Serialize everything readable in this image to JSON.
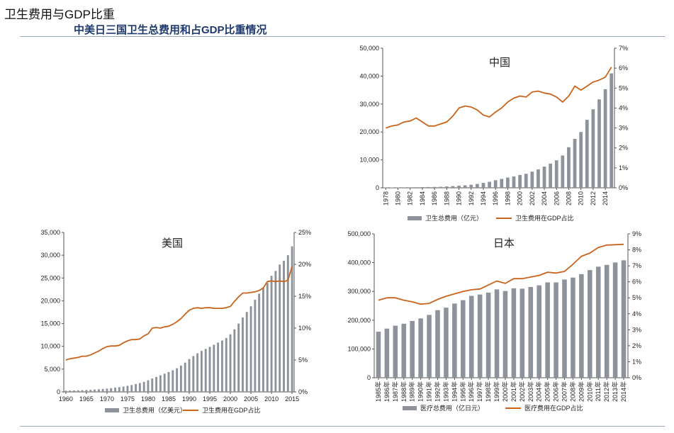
{
  "header": {
    "title": "卫生费用与GDP比重",
    "subtitle": "中美日三国卫生总费用和占GDP比重情况"
  },
  "colors": {
    "bar": "#8e939b",
    "line": "#c8641c",
    "axis": "#555555"
  },
  "chart_data": [
    {
      "id": "china",
      "type": "bar+line",
      "title": "中国",
      "categories": [
        "1978",
        "1979",
        "1980",
        "1981",
        "1982",
        "1983",
        "1984",
        "1985",
        "1986",
        "1987",
        "1988",
        "1989",
        "1990",
        "1991",
        "1992",
        "1993",
        "1994",
        "1995",
        "1996",
        "1997",
        "1998",
        "1999",
        "2000",
        "2001",
        "2002",
        "2003",
        "2004",
        "2005",
        "2006",
        "2007",
        "2008",
        "2009",
        "2010",
        "2011",
        "2012",
        "2013",
        "2014",
        "2015"
      ],
      "tick_labels": [
        "1978",
        "1980",
        "1982",
        "1984",
        "1986",
        "1988",
        "1990",
        "1992",
        "1994",
        "1996",
        "1998",
        "2000",
        "2002",
        "2004",
        "2006",
        "2008",
        "2010",
        "2012",
        "2014"
      ],
      "y_ticks": [
        "0",
        "10,000",
        "20,000",
        "30,000",
        "40,000",
        "50,000"
      ],
      "y2_ticks": [
        "0%",
        "1%",
        "2%",
        "3%",
        "4%",
        "5%",
        "6%",
        "7%"
      ],
      "ylim": [
        0,
        50000
      ],
      "y2lim": [
        0,
        7
      ],
      "series": [
        {
          "name": "卫生总费用（亿元）",
          "type": "bar",
          "values": [
            110,
            126,
            143,
            160,
            177,
            207,
            242,
            279,
            316,
            378,
            488,
            615,
            747,
            893,
            1096,
            1377,
            1761,
            2155,
            2709,
            3197,
            3679,
            4048,
            4587,
            5025,
            5790,
            6584,
            7590,
            8660,
            9843,
            11574,
            14535,
            17541,
            19980,
            24345,
            28119,
            31669,
            35312,
            40975
          ]
        },
        {
          "name": "卫生费用在GDP占比",
          "type": "line",
          "values": [
            3.0,
            3.1,
            3.15,
            3.3,
            3.35,
            3.5,
            3.3,
            3.1,
            3.1,
            3.2,
            3.3,
            3.6,
            4.0,
            4.1,
            4.05,
            3.9,
            3.65,
            3.55,
            3.8,
            4.0,
            4.3,
            4.5,
            4.6,
            4.55,
            4.8,
            4.85,
            4.75,
            4.7,
            4.55,
            4.3,
            4.6,
            5.1,
            4.9,
            5.1,
            5.3,
            5.4,
            5.55,
            6.05
          ]
        }
      ]
    },
    {
      "id": "usa",
      "type": "bar+line",
      "title": "美国",
      "categories": [
        "1960",
        "1961",
        "1962",
        "1963",
        "1964",
        "1965",
        "1966",
        "1967",
        "1968",
        "1969",
        "1970",
        "1971",
        "1972",
        "1973",
        "1974",
        "1975",
        "1976",
        "1977",
        "1978",
        "1979",
        "1980",
        "1981",
        "1982",
        "1983",
        "1984",
        "1985",
        "1986",
        "1987",
        "1988",
        "1989",
        "1990",
        "1991",
        "1992",
        "1993",
        "1994",
        "1995",
        "1996",
        "1997",
        "1998",
        "1999",
        "2000",
        "2001",
        "2002",
        "2003",
        "2004",
        "2005",
        "2006",
        "2007",
        "2008",
        "2009",
        "2010",
        "2011",
        "2012",
        "2013",
        "2014",
        "2015"
      ],
      "tick_labels": [
        "1960",
        "1965",
        "1970",
        "1975",
        "1980",
        "1985",
        "1990",
        "1995",
        "2000",
        "2005",
        "2010",
        "2015"
      ],
      "y_ticks": [
        "0",
        "5,000",
        "10,000",
        "15,000",
        "20,000",
        "25,000",
        "30,000",
        "35,000"
      ],
      "y2_ticks": [
        "0%",
        "5%",
        "10%",
        "15%",
        "20%",
        "25%"
      ],
      "ylim": [
        0,
        35000
      ],
      "y2lim": [
        0,
        25
      ],
      "series": [
        {
          "name": "卫生总费用（亿美元）",
          "type": "bar",
          "values": [
            270,
            300,
            320,
            350,
            380,
            420,
            460,
            520,
            580,
            650,
            740,
            830,
            930,
            1030,
            1160,
            1330,
            1510,
            1730,
            1950,
            2210,
            2550,
            2940,
            3290,
            3640,
            4000,
            4370,
            4750,
            5190,
            5780,
            6420,
            7210,
            7880,
            8480,
            9000,
            9450,
            9900,
            10350,
            10820,
            11270,
            11830,
            12640,
            13750,
            15000,
            16350,
            17550,
            18790,
            20230,
            21570,
            22830,
            23930,
            25490,
            26550,
            27960,
            28790,
            30010,
            31960
          ]
        },
        {
          "name": "卫生费用在GDP占比",
          "type": "line",
          "values": [
            5.0,
            5.2,
            5.3,
            5.4,
            5.6,
            5.6,
            5.8,
            6.1,
            6.4,
            6.8,
            7.1,
            7.2,
            7.2,
            7.3,
            7.7,
            8.0,
            8.2,
            8.2,
            8.3,
            8.8,
            9.1,
            10.0,
            10.1,
            10.0,
            10.2,
            10.3,
            10.6,
            11.0,
            11.5,
            12.2,
            12.8,
            13.1,
            13.2,
            13.1,
            13.2,
            13.2,
            13.1,
            13.1,
            13.1,
            13.2,
            13.4,
            14.2,
            14.9,
            15.5,
            15.5,
            15.6,
            15.7,
            15.9,
            16.3,
            17.3,
            17.4,
            17.3,
            17.4,
            17.3,
            17.5,
            19.7
          ]
        }
      ]
    },
    {
      "id": "japan",
      "type": "bar+line",
      "title": "日本",
      "categories": [
        "1985年",
        "1986年",
        "1987年",
        "1988年",
        "1989年",
        "1990年",
        "1991年",
        "1992年",
        "1993年",
        "1994年",
        "1995年",
        "1996年",
        "1997年",
        "1998年",
        "1999年",
        "2000年",
        "2001年",
        "2002年",
        "2003年",
        "2004年",
        "2005年",
        "2006年",
        "2007年",
        "2008年",
        "2009年",
        "2010年",
        "2011年",
        "2012年",
        "2013年",
        "2014年"
      ],
      "tick_labels": [
        "1985年",
        "1986年",
        "1987年",
        "1988年",
        "1989年",
        "1990年",
        "1991年",
        "1992年",
        "1993年",
        "1994年",
        "1995年",
        "1996年",
        "1997年",
        "1998年",
        "1999年",
        "2000年",
        "2001年",
        "2002年",
        "2003年",
        "2004年",
        "2005年",
        "2006年",
        "2007年",
        "2008年",
        "2009年",
        "2010年",
        "2011年",
        "2012年",
        "2013年",
        "2014年"
      ],
      "y_ticks": [
        "0",
        "100,000",
        "200,000",
        "300,000",
        "400,000",
        "500,000"
      ],
      "y2_ticks": [
        "0%",
        "1%",
        "2%",
        "3%",
        "4%",
        "5%",
        "6%",
        "7%",
        "8%",
        "9%"
      ],
      "ylim": [
        0,
        500000
      ],
      "y2lim": [
        0,
        9
      ],
      "series": [
        {
          "name": "医疗总费用（亿日元）",
          "type": "bar",
          "values": [
            160000,
            170700,
            180800,
            187600,
            197300,
            206100,
            218300,
            234800,
            243600,
            257900,
            269600,
            284500,
            289100,
            295800,
            307000,
            301400,
            310900,
            309500,
            315400,
            321100,
            331300,
            331300,
            341400,
            348100,
            360100,
            374200,
            385900,
            392100,
            400600,
            408100
          ]
        },
        {
          "name": "医疗费用在GDP占比",
          "type": "line",
          "values": [
            4.85,
            5.0,
            5.0,
            4.85,
            4.75,
            4.6,
            4.65,
            4.9,
            5.1,
            5.25,
            5.4,
            5.5,
            5.55,
            5.8,
            6.05,
            5.9,
            6.2,
            6.2,
            6.3,
            6.4,
            6.6,
            6.55,
            6.65,
            7.1,
            7.6,
            7.8,
            8.15,
            8.3,
            8.32,
            8.35
          ]
        }
      ]
    }
  ]
}
